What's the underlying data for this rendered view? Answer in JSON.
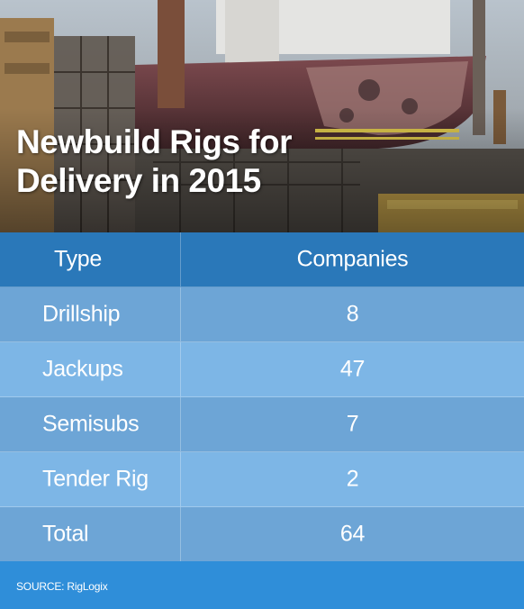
{
  "title_lines": [
    "Newbuild Rigs for",
    "Delivery in 2015"
  ],
  "chart_data": {
    "type": "table",
    "columns": [
      "Type",
      "Companies"
    ],
    "rows": [
      {
        "type": "Drillship",
        "companies": "8"
      },
      {
        "type": "Jackups",
        "companies": "47"
      },
      {
        "type": "Semisubs",
        "companies": "7"
      },
      {
        "type": "Tender Rig",
        "companies": "2"
      },
      {
        "type": "Total",
        "companies": "64"
      }
    ]
  },
  "source": "SOURCE: RigLogix",
  "colors": {
    "header_row": "#2a78b9",
    "row_dark": "#6da5d6",
    "row_light": "#7db6e6",
    "footer": "#2f8ed9"
  }
}
